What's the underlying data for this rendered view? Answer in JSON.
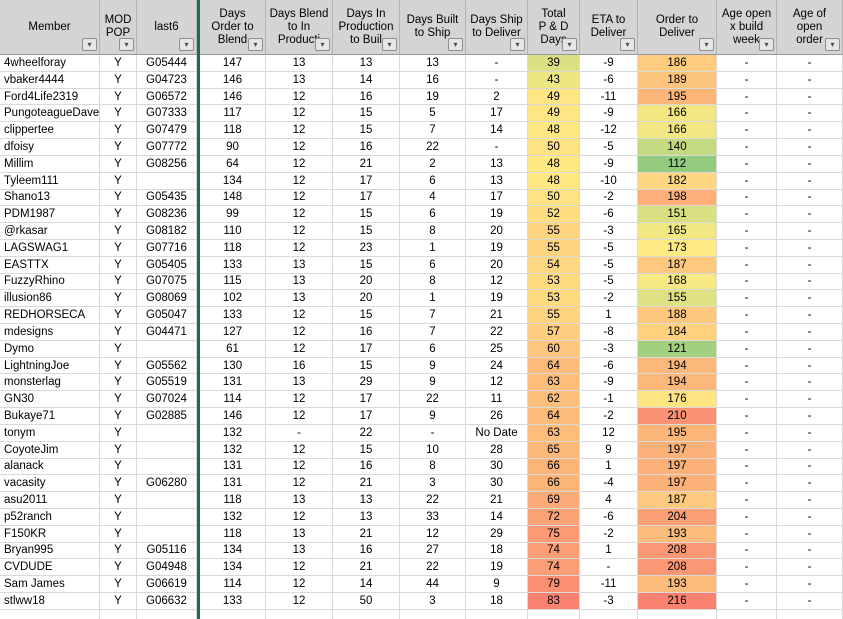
{
  "filter_icon": "▾",
  "formatting": {
    "colors": {
      "header_bg": "#d4d4d4",
      "gridline": "#d9d9d9",
      "header_border": "#b3b3b3",
      "freeze_divider_green": "#1f6c47",
      "text": "#000000",
      "scale_green": "#63be7b",
      "scale_yellow": "#ffeb84",
      "scale_red": "#f8696b"
    },
    "scales": {
      "total_pd": {
        "green_at": 12,
        "yellow_at": 47,
        "red_at": 92
      },
      "order_deliver": {
        "green_at": 86,
        "yellow_at": 173,
        "red_at": 227
      }
    }
  },
  "table": {
    "columns": [
      {
        "id": "member",
        "lines": [
          "Member"
        ],
        "width": 100,
        "align": "left"
      },
      {
        "id": "mod_pop",
        "lines": [
          "MOD",
          "POP"
        ],
        "width": 37
      },
      {
        "id": "last6",
        "lines": [
          "last6"
        ],
        "width": 60
      },
      {
        "id": "d_order_blend",
        "lines": [
          "Days",
          "Order to",
          "Blend"
        ],
        "width": 66
      },
      {
        "id": "d_blend_prod",
        "lines": [
          "Days Blend",
          "to  In",
          "Producti"
        ],
        "width": 67
      },
      {
        "id": "d_prod_built",
        "lines": [
          "Days In",
          "Production",
          "to Buil"
        ],
        "width": 67
      },
      {
        "id": "d_built_ship",
        "lines": [
          "Days Built",
          "to Ship"
        ],
        "width": 66
      },
      {
        "id": "d_ship_deliver",
        "lines": [
          "Days Ship",
          "to Deliver"
        ],
        "width": 62
      },
      {
        "id": "total_pd",
        "lines": [
          "Total",
          "P & D",
          "Days"
        ],
        "width": 52
      },
      {
        "id": "eta_deliver",
        "lines": [
          "ETA to",
          "Deliver"
        ],
        "width": 58
      },
      {
        "id": "order_deliver",
        "lines": [
          "Order to",
          "Deliver"
        ],
        "width": 79
      },
      {
        "id": "age_build_week",
        "lines": [
          "Age open",
          "x build",
          "week"
        ],
        "width": 60
      },
      {
        "id": "age_open_order",
        "lines": [
          "Age of",
          "open",
          "order"
        ],
        "width": 66
      }
    ],
    "rows": [
      {
        "member": "4wheelforay",
        "mod_pop": "Y",
        "last6": "G05444",
        "d_order_blend": 147,
        "d_blend_prod": 13,
        "d_prod_built": 13,
        "d_built_ship": 13,
        "d_ship_deliver": "-",
        "total_pd": 39,
        "eta_deliver": -9,
        "order_deliver": 186,
        "age_build_week": "-",
        "age_open_order": "-"
      },
      {
        "member": "vbaker4444",
        "mod_pop": "Y",
        "last6": "G04723",
        "d_order_blend": 146,
        "d_blend_prod": 13,
        "d_prod_built": 14,
        "d_built_ship": 16,
        "d_ship_deliver": "-",
        "total_pd": 43,
        "eta_deliver": -6,
        "order_deliver": 189,
        "age_build_week": "-",
        "age_open_order": "-"
      },
      {
        "member": "Ford4Life2319",
        "mod_pop": "Y",
        "last6": "G06572",
        "d_order_blend": 146,
        "d_blend_prod": 12,
        "d_prod_built": 16,
        "d_built_ship": 19,
        "d_ship_deliver": 2,
        "total_pd": 49,
        "eta_deliver": -11,
        "order_deliver": 195,
        "age_build_week": "-",
        "age_open_order": "-"
      },
      {
        "member": "PungoteagueDave",
        "mod_pop": "Y",
        "last6": "G07333",
        "d_order_blend": 117,
        "d_blend_prod": 12,
        "d_prod_built": 15,
        "d_built_ship": 5,
        "d_ship_deliver": 17,
        "total_pd": 49,
        "eta_deliver": -9,
        "order_deliver": 166,
        "age_build_week": "-",
        "age_open_order": "-"
      },
      {
        "member": "clippertee",
        "mod_pop": "Y",
        "last6": "G07479",
        "d_order_blend": 118,
        "d_blend_prod": 12,
        "d_prod_built": 15,
        "d_built_ship": 7,
        "d_ship_deliver": 14,
        "total_pd": 48,
        "eta_deliver": -12,
        "order_deliver": 166,
        "age_build_week": "-",
        "age_open_order": "-"
      },
      {
        "member": "dfoisy",
        "mod_pop": "Y",
        "last6": "G07772",
        "d_order_blend": 90,
        "d_blend_prod": 12,
        "d_prod_built": 16,
        "d_built_ship": 22,
        "d_ship_deliver": "-",
        "total_pd": 50,
        "eta_deliver": -5,
        "order_deliver": 140,
        "age_build_week": "-",
        "age_open_order": "-"
      },
      {
        "member": "Millim",
        "mod_pop": "Y",
        "last6": "G08256",
        "d_order_blend": 64,
        "d_blend_prod": 12,
        "d_prod_built": 21,
        "d_built_ship": 2,
        "d_ship_deliver": 13,
        "total_pd": 48,
        "eta_deliver": -9,
        "order_deliver": 112,
        "age_build_week": "-",
        "age_open_order": "-"
      },
      {
        "member": "Tyleem111",
        "mod_pop": "Y",
        "last6": "",
        "d_order_blend": 134,
        "d_blend_prod": 12,
        "d_prod_built": 17,
        "d_built_ship": 6,
        "d_ship_deliver": 13,
        "total_pd": 48,
        "eta_deliver": -10,
        "order_deliver": 182,
        "age_build_week": "-",
        "age_open_order": "-"
      },
      {
        "member": "Shano13",
        "mod_pop": "Y",
        "last6": "G05435",
        "d_order_blend": 148,
        "d_blend_prod": 12,
        "d_prod_built": 17,
        "d_built_ship": 4,
        "d_ship_deliver": 17,
        "total_pd": 50,
        "eta_deliver": -2,
        "order_deliver": 198,
        "age_build_week": "-",
        "age_open_order": "-"
      },
      {
        "member": "PDM1987",
        "mod_pop": "Y",
        "last6": "G08236",
        "d_order_blend": 99,
        "d_blend_prod": 12,
        "d_prod_built": 15,
        "d_built_ship": 6,
        "d_ship_deliver": 19,
        "total_pd": 52,
        "eta_deliver": -6,
        "order_deliver": 151,
        "age_build_week": "-",
        "age_open_order": "-"
      },
      {
        "member": "@rkasar",
        "mod_pop": "Y",
        "last6": "G08182",
        "d_order_blend": 110,
        "d_blend_prod": 12,
        "d_prod_built": 15,
        "d_built_ship": 8,
        "d_ship_deliver": 20,
        "total_pd": 55,
        "eta_deliver": -3,
        "order_deliver": 165,
        "age_build_week": "-",
        "age_open_order": "-"
      },
      {
        "member": "LAGSWAG1",
        "mod_pop": "Y",
        "last6": "G07716",
        "d_order_blend": 118,
        "d_blend_prod": 12,
        "d_prod_built": 23,
        "d_built_ship": 1,
        "d_ship_deliver": 19,
        "total_pd": 55,
        "eta_deliver": -5,
        "order_deliver": 173,
        "age_build_week": "-",
        "age_open_order": "-"
      },
      {
        "member": "EASTTX",
        "mod_pop": "Y",
        "last6": "G05405",
        "d_order_blend": 133,
        "d_blend_prod": 13,
        "d_prod_built": 15,
        "d_built_ship": 6,
        "d_ship_deliver": 20,
        "total_pd": 54,
        "eta_deliver": -5,
        "order_deliver": 187,
        "age_build_week": "-",
        "age_open_order": "-"
      },
      {
        "member": "FuzzyRhino",
        "mod_pop": "Y",
        "last6": "G07075",
        "d_order_blend": 115,
        "d_blend_prod": 13,
        "d_prod_built": 20,
        "d_built_ship": 8,
        "d_ship_deliver": 12,
        "total_pd": 53,
        "eta_deliver": -5,
        "order_deliver": 168,
        "age_build_week": "-",
        "age_open_order": "-"
      },
      {
        "member": "illusion86",
        "mod_pop": "Y",
        "last6": "G08069",
        "d_order_blend": 102,
        "d_blend_prod": 13,
        "d_prod_built": 20,
        "d_built_ship": 1,
        "d_ship_deliver": 19,
        "total_pd": 53,
        "eta_deliver": -2,
        "order_deliver": 155,
        "age_build_week": "-",
        "age_open_order": "-"
      },
      {
        "member": "REDHORSECA",
        "mod_pop": "Y",
        "last6": "G05047",
        "d_order_blend": 133,
        "d_blend_prod": 12,
        "d_prod_built": 15,
        "d_built_ship": 7,
        "d_ship_deliver": 21,
        "total_pd": 55,
        "eta_deliver": 1,
        "order_deliver": 188,
        "age_build_week": "-",
        "age_open_order": "-"
      },
      {
        "member": "mdesigns",
        "mod_pop": "Y",
        "last6": "G04471",
        "d_order_blend": 127,
        "d_blend_prod": 12,
        "d_prod_built": 16,
        "d_built_ship": 7,
        "d_ship_deliver": 22,
        "total_pd": 57,
        "eta_deliver": -8,
        "order_deliver": 184,
        "age_build_week": "-",
        "age_open_order": "-"
      },
      {
        "member": "Dymo",
        "mod_pop": "Y",
        "last6": "",
        "d_order_blend": 61,
        "d_blend_prod": 12,
        "d_prod_built": 17,
        "d_built_ship": 6,
        "d_ship_deliver": 25,
        "total_pd": 60,
        "eta_deliver": -3,
        "order_deliver": 121,
        "age_build_week": "-",
        "age_open_order": "-"
      },
      {
        "member": "LightningJoe",
        "mod_pop": "Y",
        "last6": "G05562",
        "d_order_blend": 130,
        "d_blend_prod": 16,
        "d_prod_built": 15,
        "d_built_ship": 9,
        "d_ship_deliver": 24,
        "total_pd": 64,
        "eta_deliver": -6,
        "order_deliver": 194,
        "age_build_week": "-",
        "age_open_order": "-"
      },
      {
        "member": "monsterlag",
        "mod_pop": "Y",
        "last6": "G05519",
        "d_order_blend": 131,
        "d_blend_prod": 13,
        "d_prod_built": 29,
        "d_built_ship": 9,
        "d_ship_deliver": 12,
        "total_pd": 63,
        "eta_deliver": -9,
        "order_deliver": 194,
        "age_build_week": "-",
        "age_open_order": "-"
      },
      {
        "member": "GN30",
        "mod_pop": "Y",
        "last6": "G07024",
        "d_order_blend": 114,
        "d_blend_prod": 12,
        "d_prod_built": 17,
        "d_built_ship": 22,
        "d_ship_deliver": 11,
        "total_pd": 62,
        "eta_deliver": -1,
        "order_deliver": 176,
        "age_build_week": "-",
        "age_open_order": "-"
      },
      {
        "member": "Bukaye71",
        "mod_pop": "Y",
        "last6": "G02885",
        "d_order_blend": 146,
        "d_blend_prod": 12,
        "d_prod_built": 17,
        "d_built_ship": 9,
        "d_ship_deliver": 26,
        "total_pd": 64,
        "eta_deliver": -2,
        "order_deliver": 210,
        "age_build_week": "-",
        "age_open_order": "-"
      },
      {
        "member": "tonym",
        "mod_pop": "Y",
        "last6": "",
        "d_order_blend": 132,
        "d_blend_prod": "-",
        "d_prod_built": 22,
        "d_built_ship": "-",
        "d_ship_deliver": "No Date",
        "total_pd": 63,
        "eta_deliver": 12,
        "order_deliver": 195,
        "age_build_week": "-",
        "age_open_order": "-"
      },
      {
        "member": "CoyoteJim",
        "mod_pop": "Y",
        "last6": "",
        "d_order_blend": 132,
        "d_blend_prod": 12,
        "d_prod_built": 15,
        "d_built_ship": 10,
        "d_ship_deliver": 28,
        "total_pd": 65,
        "eta_deliver": 9,
        "order_deliver": 197,
        "age_build_week": "-",
        "age_open_order": "-"
      },
      {
        "member": "alanack",
        "mod_pop": "Y",
        "last6": "",
        "d_order_blend": 131,
        "d_blend_prod": 12,
        "d_prod_built": 16,
        "d_built_ship": 8,
        "d_ship_deliver": 30,
        "total_pd": 66,
        "eta_deliver": 1,
        "order_deliver": 197,
        "age_build_week": "-",
        "age_open_order": "-"
      },
      {
        "member": "vacasity",
        "mod_pop": "Y",
        "last6": "G06280",
        "d_order_blend": 131,
        "d_blend_prod": 12,
        "d_prod_built": 21,
        "d_built_ship": 3,
        "d_ship_deliver": 30,
        "total_pd": 66,
        "eta_deliver": -4,
        "order_deliver": 197,
        "age_build_week": "-",
        "age_open_order": "-"
      },
      {
        "member": "asu2011",
        "mod_pop": "Y",
        "last6": "",
        "d_order_blend": 118,
        "d_blend_prod": 13,
        "d_prod_built": 13,
        "d_built_ship": 22,
        "d_ship_deliver": 21,
        "total_pd": 69,
        "eta_deliver": 4,
        "order_deliver": 187,
        "age_build_week": "-",
        "age_open_order": "-"
      },
      {
        "member": "p52ranch",
        "mod_pop": "Y",
        "last6": "",
        "d_order_blend": 132,
        "d_blend_prod": 12,
        "d_prod_built": 13,
        "d_built_ship": 33,
        "d_ship_deliver": 14,
        "total_pd": 72,
        "eta_deliver": -6,
        "order_deliver": 204,
        "age_build_week": "-",
        "age_open_order": "-"
      },
      {
        "member": "F150KR",
        "mod_pop": "Y",
        "last6": "",
        "d_order_blend": 118,
        "d_blend_prod": 13,
        "d_prod_built": 21,
        "d_built_ship": 12,
        "d_ship_deliver": 29,
        "total_pd": 75,
        "eta_deliver": -2,
        "order_deliver": 193,
        "age_build_week": "-",
        "age_open_order": "-"
      },
      {
        "member": "Bryan995",
        "mod_pop": "Y",
        "last6": "G05116",
        "d_order_blend": 134,
        "d_blend_prod": 13,
        "d_prod_built": 16,
        "d_built_ship": 27,
        "d_ship_deliver": 18,
        "total_pd": 74,
        "eta_deliver": 1,
        "order_deliver": 208,
        "age_build_week": "-",
        "age_open_order": "-"
      },
      {
        "member": "CVDUDE",
        "mod_pop": "Y",
        "last6": "G04948",
        "d_order_blend": 134,
        "d_blend_prod": 12,
        "d_prod_built": 21,
        "d_built_ship": 22,
        "d_ship_deliver": 19,
        "total_pd": 74,
        "eta_deliver": "-",
        "order_deliver": 208,
        "age_build_week": "-",
        "age_open_order": "-"
      },
      {
        "member": "Sam James",
        "mod_pop": "Y",
        "last6": "G06619",
        "d_order_blend": 114,
        "d_blend_prod": 12,
        "d_prod_built": 14,
        "d_built_ship": 44,
        "d_ship_deliver": 9,
        "total_pd": 79,
        "eta_deliver": -11,
        "order_deliver": 193,
        "age_build_week": "-",
        "age_open_order": "-"
      },
      {
        "member": "stlww18",
        "mod_pop": "Y",
        "last6": "G06632",
        "d_order_blend": 133,
        "d_blend_prod": 12,
        "d_prod_built": 50,
        "d_built_ship": 3,
        "d_ship_deliver": 18,
        "total_pd": 83,
        "eta_deliver": -3,
        "order_deliver": 216,
        "age_build_week": "-",
        "age_open_order": "-"
      }
    ]
  }
}
